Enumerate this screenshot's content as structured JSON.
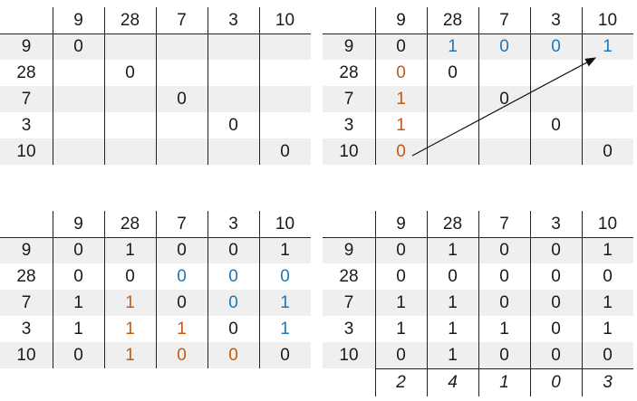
{
  "colors": {
    "black": "#1a1a1a",
    "blue": "#1f77b4",
    "orange": "#c55a11",
    "shade": "#efefef"
  },
  "matrices": [
    {
      "name": "matrix-top-left",
      "headers": [
        "9",
        "28",
        "7",
        "3",
        "10"
      ],
      "row_labels": [
        "9",
        "28",
        "7",
        "3",
        "10"
      ],
      "cells": [
        [
          "0",
          "",
          "",
          "",
          ""
        ],
        [
          "",
          "0",
          "",
          "",
          ""
        ],
        [
          "",
          "",
          "0",
          "",
          ""
        ],
        [
          "",
          "",
          "",
          "0",
          ""
        ],
        [
          "",
          "",
          "",
          "",
          "0"
        ]
      ],
      "colors": [
        [
          "k",
          "k",
          "k",
          "k",
          "k"
        ],
        [
          "k",
          "k",
          "k",
          "k",
          "k"
        ],
        [
          "k",
          "k",
          "k",
          "k",
          "k"
        ],
        [
          "k",
          "k",
          "k",
          "k",
          "k"
        ],
        [
          "k",
          "k",
          "k",
          "k",
          "k"
        ]
      ],
      "column_sums": []
    },
    {
      "name": "matrix-top-right",
      "headers": [
        "9",
        "28",
        "7",
        "3",
        "10"
      ],
      "row_labels": [
        "9",
        "28",
        "7",
        "3",
        "10"
      ],
      "cells": [
        [
          "0",
          "1",
          "0",
          "0",
          "1"
        ],
        [
          "0",
          "0",
          "",
          "",
          ""
        ],
        [
          "1",
          "",
          "0",
          "",
          ""
        ],
        [
          "1",
          "",
          "",
          "0",
          ""
        ],
        [
          "0",
          "",
          "",
          "",
          "0"
        ]
      ],
      "colors": [
        [
          "k",
          "b",
          "b",
          "b",
          "b"
        ],
        [
          "o",
          "k",
          "k",
          "k",
          "k"
        ],
        [
          "o",
          "k",
          "k",
          "k",
          "k"
        ],
        [
          "o",
          "k",
          "k",
          "k",
          "k"
        ],
        [
          "o",
          "k",
          "k",
          "k",
          "k"
        ]
      ],
      "column_sums": []
    },
    {
      "name": "matrix-bottom-left",
      "headers": [
        "9",
        "28",
        "7",
        "3",
        "10"
      ],
      "row_labels": [
        "9",
        "28",
        "7",
        "3",
        "10"
      ],
      "cells": [
        [
          "0",
          "1",
          "0",
          "0",
          "1"
        ],
        [
          "0",
          "0",
          "0",
          "0",
          "0"
        ],
        [
          "1",
          "1",
          "0",
          "0",
          "1"
        ],
        [
          "1",
          "1",
          "1",
          "0",
          "1"
        ],
        [
          "0",
          "1",
          "0",
          "0",
          "0"
        ]
      ],
      "colors": [
        [
          "k",
          "k",
          "k",
          "k",
          "k"
        ],
        [
          "k",
          "k",
          "b",
          "b",
          "b"
        ],
        [
          "k",
          "o",
          "k",
          "b",
          "b"
        ],
        [
          "k",
          "o",
          "o",
          "k",
          "b"
        ],
        [
          "k",
          "o",
          "o",
          "o",
          "k"
        ]
      ],
      "column_sums": []
    },
    {
      "name": "matrix-bottom-right",
      "headers": [
        "9",
        "28",
        "7",
        "3",
        "10"
      ],
      "row_labels": [
        "9",
        "28",
        "7",
        "3",
        "10"
      ],
      "cells": [
        [
          "0",
          "1",
          "0",
          "0",
          "1"
        ],
        [
          "0",
          "0",
          "0",
          "0",
          "0"
        ],
        [
          "1",
          "1",
          "0",
          "0",
          "1"
        ],
        [
          "1",
          "1",
          "1",
          "0",
          "1"
        ],
        [
          "0",
          "1",
          "0",
          "0",
          "0"
        ]
      ],
      "colors": [
        [
          "k",
          "k",
          "k",
          "k",
          "k"
        ],
        [
          "k",
          "k",
          "k",
          "k",
          "k"
        ],
        [
          "k",
          "k",
          "k",
          "k",
          "k"
        ],
        [
          "k",
          "k",
          "k",
          "k",
          "k"
        ],
        [
          "k",
          "k",
          "k",
          "k",
          "k"
        ]
      ],
      "column_sums": [
        "2",
        "4",
        "1",
        "0",
        "3"
      ]
    }
  ]
}
